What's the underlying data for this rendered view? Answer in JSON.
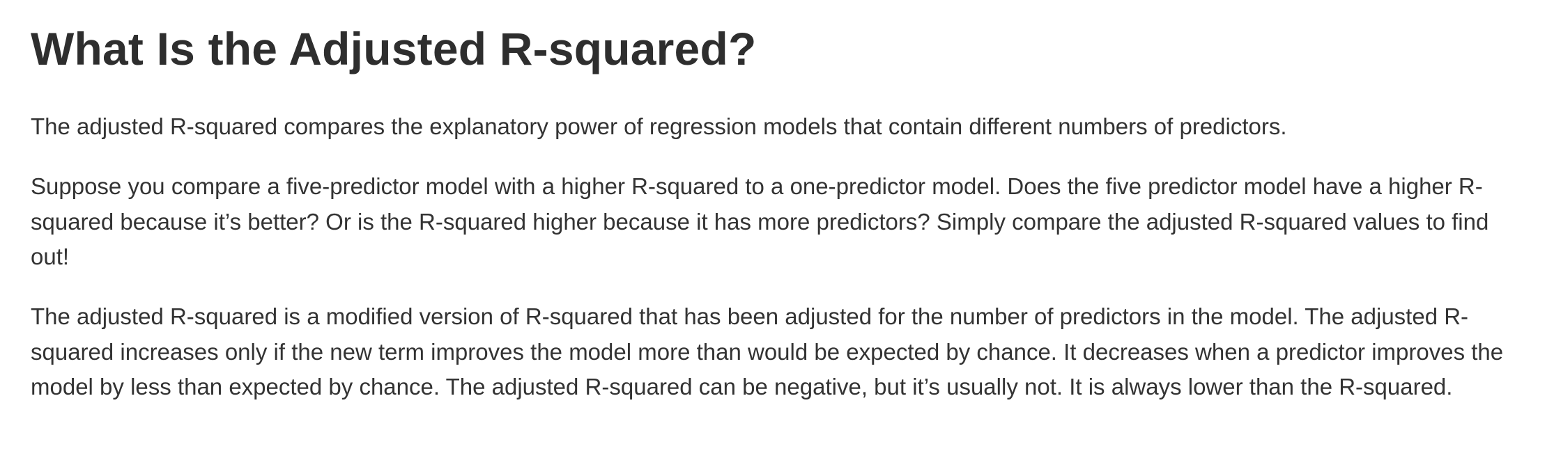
{
  "article": {
    "title": "What Is the Adjusted R-squared?",
    "paragraphs": [
      "The adjusted R-squared compares the explanatory power of regression models that contain different numbers of predictors.",
      "Suppose you compare a five-predictor model with a higher R-squared to a one-predictor model. Does the five predictor model have a higher R-squared because it’s better? Or is the R-squared higher because it has more predictors? Simply compare the adjusted R-squared values to find out!",
      "The adjusted R-squared is a modified version of R-squared that has been adjusted for the number of predictors in the model. The adjusted R-squared increases only if the new term improves the model more than would be expected by chance. It decreases when a predictor improves the model by less than expected by chance. The adjusted R-squared can be negative, but it’s usually not.  It is always lower than the R-squared."
    ]
  }
}
